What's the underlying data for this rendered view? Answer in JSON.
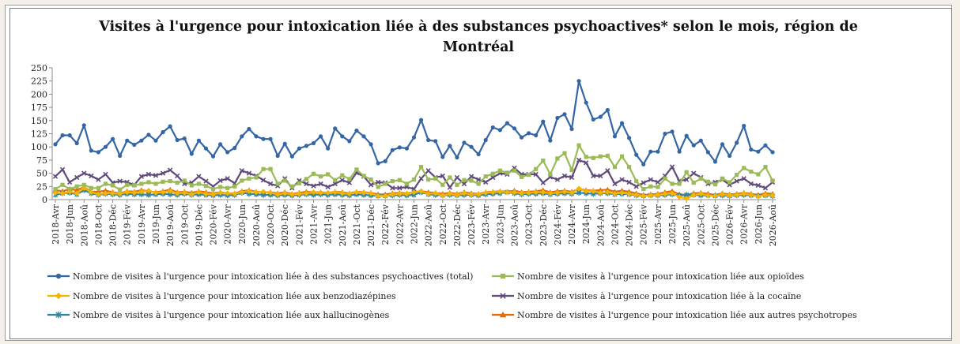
{
  "chart_data": {
    "type": "line",
    "title": "Visites à l'urgence pour intoxication liée à des substances psychoactives* selon le mois, région de Montréal",
    "ylim": [
      0,
      250
    ],
    "yticks": [
      0,
      25,
      50,
      75,
      100,
      125,
      150,
      175,
      200,
      225,
      250
    ],
    "x_tick_labels": [
      "2018-Avr",
      "2018-Jun",
      "2018-Aoû",
      "2018-Oct",
      "2018-Déc",
      "2019-Fév",
      "2019-Avr",
      "2019-Jun",
      "2019-Aoû",
      "2019-Oct",
      "2019-Déc",
      "2020-Fév",
      "2020-Avr",
      "2020-Jun",
      "2020-Aoû",
      "2020-Oct",
      "2020-Déc",
      "2021-Fév",
      "2021-Avr",
      "2021-Jun",
      "2021-Aoû",
      "2021-Oct",
      "2021-Déc",
      "2022-Fév",
      "2022-Avr",
      "2022-Jun",
      "2022-Aoû",
      "2022-Oct",
      "2022-Déc",
      "2023-Fév",
      "2023-Avr",
      "2023-Jun",
      "2023-Aoû",
      "2023-Oct",
      "2023-Déc",
      "2024-Fév",
      "2024-Avr",
      "2024-Jun",
      "2024-Aoû",
      "2024-Oct",
      "2024-Déc",
      "2025-Fév",
      "2025-Avr",
      "2025-Jun",
      "2025-Aoû",
      "2025-Oct",
      "2025-Déc",
      "2026-Fév",
      "2026-Avr",
      "2026-Jun",
      "2026-Aoû"
    ],
    "grid": false,
    "legend_position": "bottom",
    "series": [
      {
        "name": "Nombre de visites à l'urgence pour intoxication liée à des substances psychoactives (total)",
        "color": "#3465a4",
        "marker": "circle",
        "values": [
          105,
          122,
          122,
          107,
          141,
          93,
          90,
          100,
          115,
          83,
          112,
          104,
          112,
          123,
          112,
          128,
          139,
          113,
          116,
          87,
          112,
          97,
          82,
          105,
          90,
          98,
          120,
          134,
          120,
          115,
          115,
          83,
          106,
          82,
          97,
          102,
          107,
          120,
          97,
          135,
          120,
          111,
          131,
          120,
          105,
          69,
          73,
          94,
          99,
          97,
          118,
          151,
          113,
          111,
          81,
          102,
          80,
          108,
          100,
          86,
          113,
          137,
          132,
          145,
          135,
          118,
          126,
          122,
          148,
          112,
          155,
          162,
          134,
          225,
          184,
          152,
          157,
          170,
          120,
          145,
          117,
          85,
          67,
          91,
          91,
          125,
          129,
          91,
          121,
          103,
          112,
          90,
          72,
          105,
          83,
          108,
          140,
          95,
          91,
          103,
          90
        ]
      },
      {
        "name": "Nombre de visites à l'urgence pour intoxication liée aux opioïdes",
        "color": "#9bbb59",
        "marker": "square",
        "values": [
          20,
          28,
          20,
          25,
          28,
          22,
          22,
          30,
          27,
          19,
          28,
          27,
          30,
          33,
          30,
          34,
          35,
          32,
          36,
          27,
          30,
          26,
          20,
          24,
          22,
          25,
          36,
          40,
          42,
          58,
          58,
          30,
          36,
          25,
          31,
          39,
          49,
          44,
          48,
          37,
          46,
          39,
          57,
          45,
          38,
          24,
          30,
          35,
          37,
          30,
          38,
          62,
          38,
          40,
          28,
          42,
          28,
          37,
          36,
          30,
          44,
          49,
          55,
          51,
          55,
          43,
          47,
          58,
          74,
          48,
          78,
          88,
          56,
          103,
          81,
          79,
          82,
          83,
          62,
          82,
          62,
          35,
          20,
          25,
          24,
          40,
          30,
          30,
          52,
          32,
          40,
          34,
          29,
          40,
          33,
          47,
          60,
          53,
          48,
          62,
          36
        ]
      },
      {
        "name": "Nombre de visites à l'urgence pour intoxication liée aux benzodiazépines",
        "color": "#f4b400",
        "marker": "diamond",
        "values": [
          13,
          12,
          15,
          12,
          22,
          14,
          10,
          12,
          12,
          11,
          14,
          13,
          15,
          17,
          13,
          14,
          16,
          12,
          13,
          10,
          14,
          11,
          10,
          13,
          12,
          11,
          14,
          16,
          14,
          15,
          13,
          10,
          12,
          10,
          11,
          12,
          14,
          13,
          13,
          14,
          12,
          11,
          14,
          13,
          12,
          7,
          7,
          10,
          11,
          11,
          14,
          16,
          11,
          12,
          8,
          11,
          9,
          12,
          10,
          10,
          13,
          14,
          15,
          14,
          14,
          12,
          13,
          14,
          14,
          12,
          13,
          15,
          13,
          21,
          16,
          16,
          13,
          14,
          11,
          13,
          11,
          9,
          7,
          8,
          9,
          11,
          12,
          5,
          2,
          9,
          11,
          8,
          7,
          10,
          8,
          9,
          11,
          9,
          6,
          9,
          8
        ]
      },
      {
        "name": "Nombre de visites à l'urgence pour intoxication liée à la cocaïne",
        "color": "#604a7b",
        "marker": "x",
        "values": [
          44,
          57,
          33,
          42,
          50,
          45,
          38,
          48,
          32,
          35,
          33,
          28,
          44,
          48,
          46,
          50,
          56,
          45,
          30,
          32,
          44,
          35,
          25,
          36,
          40,
          31,
          55,
          50,
          45,
          37,
          30,
          26,
          40,
          22,
          36,
          30,
          26,
          30,
          24,
          30,
          37,
          32,
          51,
          44,
          28,
          33,
          32,
          22,
          22,
          24,
          20,
          40,
          55,
          42,
          45,
          23,
          42,
          30,
          44,
          38,
          33,
          42,
          50,
          48,
          60,
          48,
          48,
          48,
          32,
          43,
          38,
          45,
          42,
          75,
          70,
          45,
          45,
          55,
          30,
          38,
          33,
          25,
          32,
          38,
          33,
          45,
          62,
          35,
          38,
          50,
          42,
          30,
          33,
          38,
          28,
          35,
          40,
          30,
          27,
          22,
          33
        ]
      },
      {
        "name": "Nombre de visites à l'urgence pour intoxication liée aux hallucinogènes",
        "color": "#31859c",
        "marker": "asterisk",
        "values": [
          9,
          12,
          13,
          10,
          18,
          12,
          9,
          11,
          10,
          9,
          11,
          10,
          10,
          9,
          10,
          11,
          10,
          9,
          11,
          9,
          10,
          9,
          8,
          9,
          8,
          9,
          13,
          11,
          10,
          9,
          9,
          8,
          9,
          8,
          9,
          10,
          9,
          10,
          9,
          10,
          9,
          8,
          10,
          9,
          8,
          7,
          7,
          8,
          9,
          8,
          9,
          14,
          10,
          9,
          8,
          9,
          8,
          9,
          9,
          8,
          10,
          11,
          12,
          14,
          12,
          10,
          11,
          11,
          12,
          10,
          11,
          12,
          11,
          13,
          12,
          11,
          12,
          12,
          10,
          11,
          10,
          8,
          7,
          8,
          8,
          9,
          10,
          8,
          9,
          9,
          8,
          8,
          7,
          8,
          7,
          8,
          9,
          8,
          7,
          8,
          7
        ]
      },
      {
        "name": "Nombre de visites à l'urgence pour intoxication liée aux autres psychotropes",
        "color": "#e36c09",
        "marker": "triangle",
        "values": [
          18,
          16,
          20,
          18,
          24,
          15,
          15,
          17,
          14,
          12,
          16,
          15,
          18,
          16,
          14,
          16,
          19,
          14,
          15,
          13,
          16,
          14,
          12,
          14,
          12,
          12,
          16,
          18,
          15,
          14,
          14,
          12,
          14,
          11,
          13,
          15,
          14,
          14,
          13,
          15,
          14,
          12,
          15,
          14,
          13,
          10,
          10,
          12,
          13,
          12,
          14,
          16,
          14,
          13,
          11,
          13,
          11,
          14,
          12,
          11,
          14,
          15,
          16,
          15,
          17,
          14,
          15,
          16,
          18,
          14,
          16,
          17,
          15,
          20,
          18,
          17,
          18,
          19,
          15,
          17,
          15,
          12,
          9,
          10,
          11,
          14,
          16,
          10,
          9,
          12,
          13,
          11,
          9,
          12,
          10,
          11,
          13,
          11,
          9,
          12,
          11
        ]
      }
    ]
  }
}
